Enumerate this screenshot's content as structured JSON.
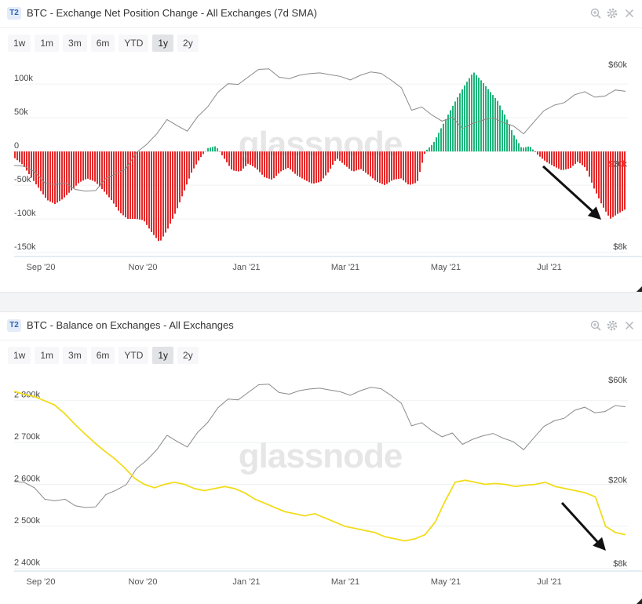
{
  "timeframes": [
    "1w",
    "1m",
    "3m",
    "6m",
    "YTD",
    "1y",
    "2y"
  ],
  "active_timeframe": "1y",
  "watermark": "glassnode",
  "colors": {
    "positive": "#1fb47a",
    "negative": "#e5292a",
    "balance": "#f2dc1b",
    "price": "#8a8a8a",
    "arrow": "#111111"
  },
  "panels": [
    {
      "badge": "T2",
      "title": "BTC - Exchange Net Position Change - All Exchanges (7d SMA)"
    },
    {
      "badge": "T2",
      "title": "BTC - Balance on Exchanges - All Exchanges"
    }
  ],
  "chart_data": [
    {
      "type": "bar",
      "title": "BTC - Exchange Net Position Change - All Exchanges (7d SMA)",
      "x_ticks": [
        "Sep '20",
        "Nov '20",
        "Jan '21",
        "Mar '21",
        "May '21",
        "Jul '21"
      ],
      "y_ticks_left": [
        "100k",
        "50k",
        "0",
        "-50k",
        "-100k",
        "-150k"
      ],
      "y_ticks_right": [
        "$60k",
        "$20k",
        "$8k"
      ],
      "ylim_left": [
        -150000,
        120000
      ],
      "price_axis": "log",
      "series": [
        {
          "values": [
            -10000,
            -20000,
            -38000,
            -55000,
            -72000,
            -78000,
            -70000,
            -58000,
            -46000,
            -40000,
            -45000,
            -58000,
            -72000,
            -90000,
            -100000,
            -100000,
            -102000,
            -120000,
            -135000,
            -115000,
            -90000,
            -60000,
            -30000,
            -10000,
            5000,
            8000,
            -10000,
            -28000,
            -30000,
            -18000,
            -25000,
            -38000,
            -42000,
            -30000,
            -24000,
            -35000,
            -42000,
            -48000,
            -45000,
            -30000,
            -10000,
            -20000,
            -30000,
            -26000,
            -35000,
            -45000,
            -50000,
            -42000,
            -40000,
            -50000,
            -46000,
            0,
            12000,
            35000,
            58000,
            80000,
            100000,
            118000,
            105000,
            90000,
            75000,
            52000,
            25000,
            5000,
            8000,
            -5000,
            -15000,
            -22000,
            -28000,
            -25000,
            -15000,
            -25000,
            -55000,
            -80000,
            -100000,
            -92000,
            -85000
          ]
        },
        {
          "values": [
            21000,
            20800,
            19600,
            17300,
            17000,
            17300,
            16100,
            15800,
            15900,
            18200,
            19100,
            20300,
            24200,
            26500,
            29800,
            34900,
            32600,
            30700,
            36000,
            40200,
            47200,
            51900,
            51500,
            56000,
            60800,
            61200,
            55800,
            54800,
            57000,
            58000,
            58500,
            57300,
            56300,
            54100,
            57000,
            59100,
            58200,
            54000,
            49600,
            38700,
            40100,
            36700,
            34300,
            35800,
            31600,
            33400,
            34700,
            35600,
            33800,
            32500,
            29800,
            33900,
            38500,
            40900,
            42100,
            45900,
            47500,
            44700,
            45300,
            48400,
            47700
          ]
        }
      ]
    },
    {
      "type": "line",
      "title": "BTC - Balance on Exchanges - All Exchanges",
      "x_ticks": [
        "Sep '20",
        "Nov '20",
        "Jan '21",
        "Mar '21",
        "May '21",
        "Jul '21"
      ],
      "y_ticks_left": [
        "2 800k",
        "2 700k",
        "2 600k",
        "2 500k",
        "2 400k"
      ],
      "y_ticks_right": [
        "$60k",
        "$20k",
        "$8k"
      ],
      "ylim_left": [
        2395000,
        2835000
      ],
      "price_axis": "log",
      "series": [
        {
          "values": [
            2822000,
            2815000,
            2810000,
            2800000,
            2790000,
            2770000,
            2745000,
            2722000,
            2700000,
            2680000,
            2662000,
            2640000,
            2615000,
            2600000,
            2592000,
            2600000,
            2605000,
            2600000,
            2590000,
            2585000,
            2590000,
            2595000,
            2590000,
            2580000,
            2565000,
            2555000,
            2545000,
            2535000,
            2530000,
            2525000,
            2530000,
            2520000,
            2510000,
            2500000,
            2495000,
            2490000,
            2485000,
            2475000,
            2470000,
            2465000,
            2470000,
            2480000,
            2510000,
            2560000,
            2605000,
            2610000,
            2605000,
            2600000,
            2602000,
            2600000,
            2595000,
            2598000,
            2600000,
            2605000,
            2595000,
            2590000,
            2585000,
            2580000,
            2570000,
            2500000,
            2485000,
            2480000
          ]
        },
        {
          "values": [
            21000,
            20800,
            19600,
            17300,
            17000,
            17300,
            16100,
            15800,
            15900,
            18200,
            19100,
            20300,
            24200,
            26500,
            29800,
            34900,
            32600,
            30700,
            36000,
            40200,
            47200,
            51900,
            51500,
            56000,
            60800,
            61200,
            55800,
            54800,
            57000,
            58000,
            58500,
            57300,
            56300,
            54100,
            57000,
            59100,
            58200,
            54000,
            49600,
            38700,
            40100,
            36700,
            34300,
            35800,
            31600,
            33400,
            34700,
            35600,
            33800,
            32500,
            29800,
            33900,
            38500,
            40900,
            42100,
            45900,
            47500,
            44700,
            45300,
            48400,
            47700
          ]
        }
      ]
    }
  ]
}
